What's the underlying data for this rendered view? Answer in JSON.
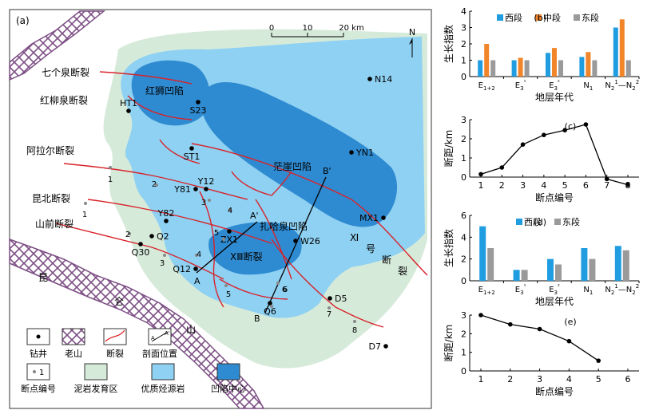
{
  "map": {
    "panel_label": "(a)",
    "scale": {
      "ticks": [
        "0",
        "10",
        "20 km"
      ]
    },
    "north": "N",
    "faults": {
      "qigequan": "七个泉断裂",
      "hongliuquan": "红柳泉断裂",
      "alaer": "阿拉尔断裂",
      "kunbei": "昆北断裂",
      "shanqian": "山前断裂",
      "xiii": "XⅢ断裂",
      "xi_1": "Ⅺ",
      "xi_2": "号",
      "xi_3": "断",
      "xi_4": "裂"
    },
    "depressions": {
      "hongshi": "红狮凹陷",
      "mangya": "茫崖凹陷",
      "zhahaquan": "扎哈泉凹陷"
    },
    "mountains": {
      "k1": "昆",
      "k2": "仑",
      "k3": "山"
    },
    "wells": [
      "N14",
      "HT1",
      "S23",
      "ST1",
      "YN1",
      "Y12",
      "Y81",
      "Y82",
      "Q2",
      "Q30",
      "Q12",
      "ZX1",
      "W26",
      "MX1",
      "D5",
      "Q6",
      "D7"
    ],
    "profile": {
      "a": "A",
      "a2": "A'",
      "b": "B",
      "b2": "B'"
    },
    "breakpoints_left": [
      "1",
      "2",
      "3",
      "4",
      "5",
      "6",
      "7",
      "8"
    ],
    "breakpoints_right": [
      "1",
      "2",
      "3",
      "4",
      "5",
      "6"
    ],
    "legend": {
      "well": "钻井",
      "old_mountain": "老山",
      "fault": "断裂",
      "profile_position": "剖面位置",
      "profile_a": "A",
      "profile_a2": "A'",
      "breakpoint": "断点编号",
      "breakpoint_sample": "1",
      "mudstone": "泥岩发育区",
      "source_rock": "优质烃源岩",
      "center": "凹陷中心"
    }
  },
  "colors": {
    "mudstone": "#d6eada",
    "source_rock": "#8fd1f2",
    "center": "#2f8bd1",
    "fault": "#d8232a",
    "mountain": "#7d4f85",
    "west": "#1f9de0",
    "middle": "#f0852a",
    "east": "#9a9a9a"
  },
  "chart_data": [
    {
      "panel": "(b)",
      "type": "bar",
      "ylabel": "生长指数",
      "xlabel": "地层年代",
      "ylim": [
        0,
        4
      ],
      "yticks": [
        "0",
        "1",
        "2",
        "3",
        "4"
      ],
      "categories": [
        "E1+2",
        "E3¹",
        "E3²",
        "N1",
        "N2¹—N2²"
      ],
      "series": [
        {
          "name": "西段",
          "values": [
            1.0,
            1.0,
            1.45,
            1.2,
            3.0
          ]
        },
        {
          "name": "中段",
          "values": [
            2.0,
            1.15,
            1.75,
            1.5,
            3.5
          ]
        },
        {
          "name": "东段",
          "values": [
            1.0,
            1.0,
            1.0,
            1.0,
            1.0
          ]
        }
      ],
      "legend": "top"
    },
    {
      "panel": "(c)",
      "type": "line",
      "ylabel": "断距/km",
      "xlabel": "断点编号",
      "ylim": [
        0,
        3
      ],
      "yticks": [
        "0",
        "1",
        "2",
        "3"
      ],
      "xticks": [
        "1",
        "2",
        "3",
        "4",
        "5",
        "6",
        "7",
        "8"
      ],
      "x": [
        1,
        2,
        3,
        4,
        5,
        6,
        7,
        8
      ],
      "y": [
        0.15,
        0.5,
        1.7,
        2.2,
        2.45,
        2.75,
        -0.1,
        -0.4
      ]
    },
    {
      "panel": "(d)",
      "type": "bar",
      "ylabel": "生长指数",
      "xlabel": "地层年代",
      "ylim": [
        0,
        6
      ],
      "yticks": [
        "0",
        "2",
        "4",
        "6"
      ],
      "categories": [
        "E1+2",
        "E3¹",
        "E3²",
        "N1",
        "N2¹—N2²"
      ],
      "series": [
        {
          "name": "西段",
          "values": [
            5.0,
            1.0,
            2.0,
            3.0,
            3.2
          ]
        },
        {
          "name": "东段",
          "values": [
            3.0,
            1.0,
            1.5,
            2.0,
            2.8
          ]
        }
      ],
      "legend": "top"
    },
    {
      "panel": "(e)",
      "type": "line",
      "ylabel": "断距/km",
      "xlabel": "断点编号",
      "ylim": [
        0,
        3
      ],
      "yticks": [
        "0",
        "1",
        "2",
        "3"
      ],
      "xticks": [
        "1",
        "2",
        "3",
        "4",
        "5",
        "6"
      ],
      "x": [
        1,
        2,
        3,
        4,
        5,
        6
      ],
      "y": [
        3.0,
        2.5,
        2.25,
        1.6,
        0.55,
        null
      ]
    }
  ]
}
